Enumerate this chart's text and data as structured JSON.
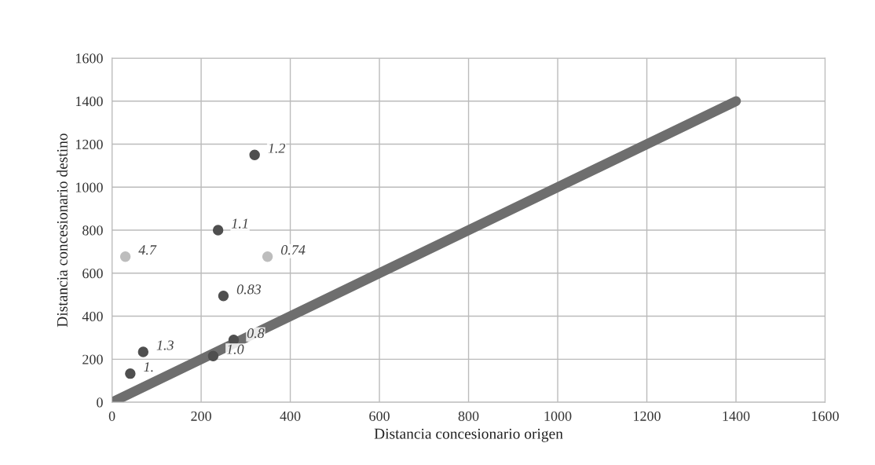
{
  "chart_data": {
    "type": "scatter",
    "xlabel": "Distancia concesionario origen",
    "ylabel": "Distancia concesionario destino",
    "xlim": [
      0,
      1600
    ],
    "xticks": [
      0,
      200,
      400,
      600,
      800,
      1000,
      1200,
      1400,
      1600
    ],
    "ylim": [
      0,
      1600
    ],
    "yticks": [
      0,
      200,
      400,
      600,
      800,
      1000,
      1200,
      1400,
      1600
    ],
    "grid": true,
    "series": [
      {
        "type": "line",
        "marker": "none",
        "color": "#6e6e6e",
        "x": [
          0,
          1400
        ],
        "values": [
          0,
          1400
        ]
      },
      {
        "marker": "circle",
        "color": "#4f4f4f",
        "x": [
          320,
          238,
          250,
          273,
          227,
          70,
          41
        ],
        "values": [
          1150,
          800,
          494,
          290,
          215,
          234,
          133
        ]
      },
      {
        "marker": "circle",
        "color": "#bdbdbd",
        "x": [
          30,
          349
        ],
        "values": [
          677,
          677
        ]
      }
    ],
    "annotations": [
      {
        "text": "1.2",
        "x": 320,
        "y": 1150
      },
      {
        "text": "1.1",
        "x": 238,
        "y": 800
      },
      {
        "text": "0.83",
        "x": 250,
        "y": 494
      },
      {
        "text": "0.8",
        "x": 273,
        "y": 290
      },
      {
        "text": "1.0",
        "x": 227,
        "y": 215
      },
      {
        "text": "1.3",
        "x": 70,
        "y": 234
      },
      {
        "text": "1.",
        "x": 41,
        "y": 133
      },
      {
        "text": "4.7",
        "x": 30,
        "y": 677
      },
      {
        "text": "0.74",
        "x": 349,
        "y": 677
      }
    ]
  }
}
